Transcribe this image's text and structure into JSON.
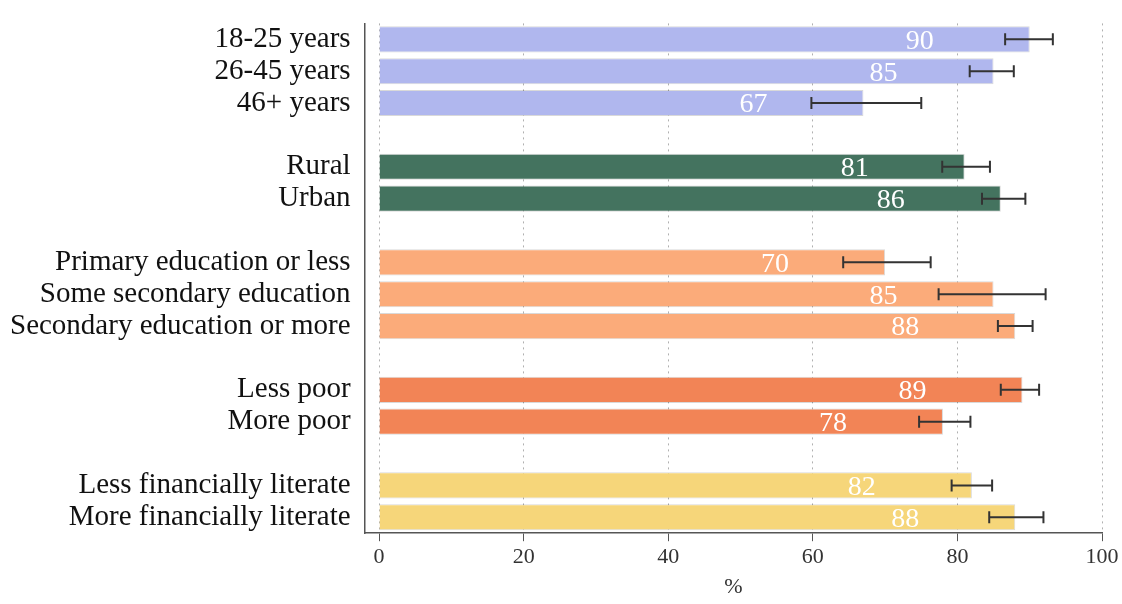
{
  "chart_data": {
    "type": "bar",
    "orientation": "horizontal",
    "xlabel": "%",
    "categories": [
      "18-25 years",
      "26-45 years",
      "46+ years",
      null,
      "Rural",
      "Urban",
      null,
      "Primary education or less",
      "Some secondary education",
      "Secondary education or more",
      null,
      "Less poor",
      "More poor",
      null,
      "Less financially literate",
      "More financially literate"
    ],
    "values": [
      90,
      85,
      67,
      null,
      81,
      86,
      null,
      70,
      85,
      88,
      null,
      89,
      78,
      null,
      82,
      88
    ],
    "colors": [
      "#b0b7ee",
      "#b0b7ee",
      "#b0b7ee",
      null,
      "#44735f",
      "#44735f",
      null,
      "#fbab7a",
      "#fbab7a",
      "#fbab7a",
      null,
      "#f28456",
      "#f28456",
      null,
      "#f6d67a",
      "#f6d67a"
    ],
    "errors": [
      [
        86.6,
        93.2
      ],
      [
        81.7,
        87.8
      ],
      [
        59.8,
        75.0
      ],
      null,
      [
        77.9,
        84.5
      ],
      [
        83.4,
        89.4
      ],
      null,
      [
        64.2,
        76.3
      ],
      [
        77.4,
        92.2
      ],
      [
        85.6,
        90.4
      ],
      null,
      [
        86.0,
        91.3
      ],
      [
        74.7,
        81.8
      ],
      null,
      [
        79.2,
        84.8
      ],
      [
        84.4,
        91.9
      ]
    ],
    "xlim": [
      -2,
      100
    ],
    "xticks": [
      0,
      20,
      40,
      60,
      80,
      100
    ],
    "grid": "x",
    "legend": false,
    "data_labels": true
  }
}
